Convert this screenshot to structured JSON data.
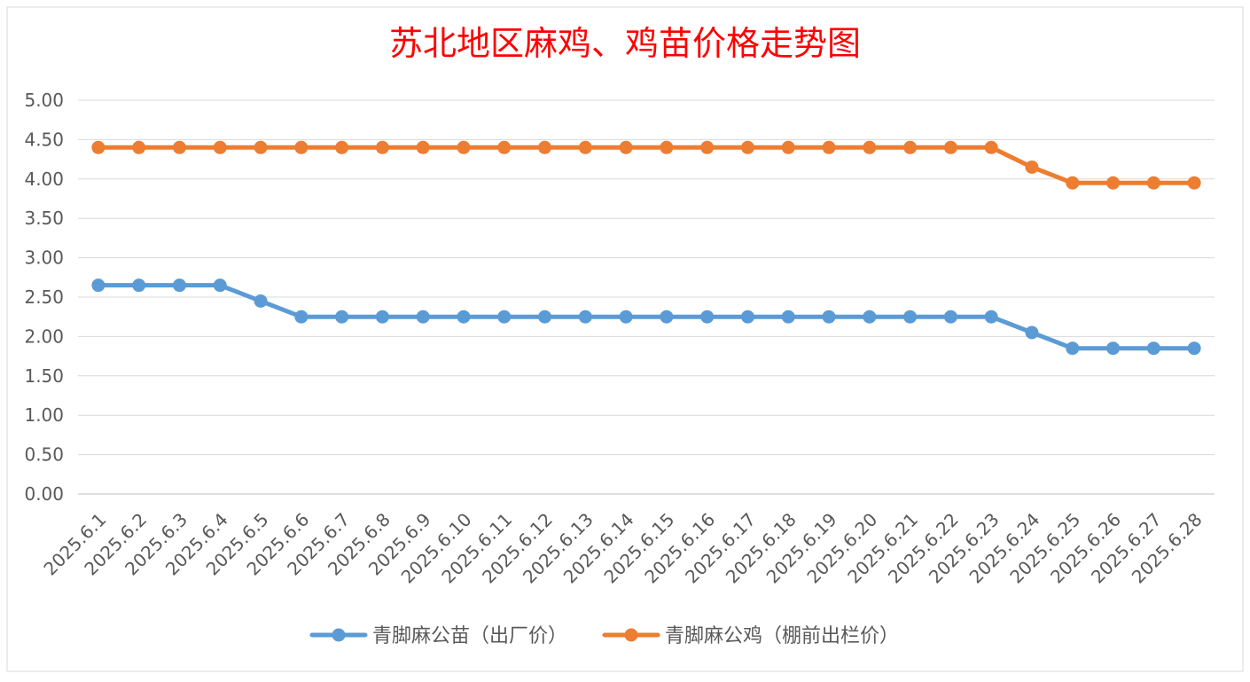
{
  "chart_data": {
    "type": "line",
    "title": "苏北地区麻鸡、鸡苗价格走势图",
    "xlabel": "",
    "ylabel": "",
    "categories": [
      "2025.6.1",
      "2025.6.2",
      "2025.6.3",
      "2025.6.4",
      "2025.6.5",
      "2025.6.6",
      "2025.6.7",
      "2025.6.8",
      "2025.6.9",
      "2025.6.10",
      "2025.6.11",
      "2025.6.12",
      "2025.6.13",
      "2025.6.14",
      "2025.6.15",
      "2025.6.16",
      "2025.6.17",
      "2025.6.18",
      "2025.6.19",
      "2025.6.20",
      "2025.6.21",
      "2025.6.22",
      "2025.6.23",
      "2025.6.24",
      "2025.6.25",
      "2025.6.26",
      "2025.6.27",
      "2025.6.28"
    ],
    "ylim": [
      0,
      5
    ],
    "yticks": [
      "0.00",
      "0.50",
      "1.00",
      "1.50",
      "2.00",
      "2.50",
      "3.00",
      "3.50",
      "4.00",
      "4.50",
      "5.00"
    ],
    "grid": true,
    "legend_position": "bottom",
    "series": [
      {
        "name": "青脚麻公苗（出厂价）",
        "color": "#5B9BD5",
        "values": [
          2.65,
          2.65,
          2.65,
          2.65,
          2.45,
          2.25,
          2.25,
          2.25,
          2.25,
          2.25,
          2.25,
          2.25,
          2.25,
          2.25,
          2.25,
          2.25,
          2.25,
          2.25,
          2.25,
          2.25,
          2.25,
          2.25,
          2.25,
          2.05,
          1.85,
          1.85,
          1.85,
          1.85
        ]
      },
      {
        "name": "青脚麻公鸡（棚前出栏价）",
        "color": "#ED7D31",
        "values": [
          4.4,
          4.4,
          4.4,
          4.4,
          4.4,
          4.4,
          4.4,
          4.4,
          4.4,
          4.4,
          4.4,
          4.4,
          4.4,
          4.4,
          4.4,
          4.4,
          4.4,
          4.4,
          4.4,
          4.4,
          4.4,
          4.4,
          4.4,
          4.15,
          3.95,
          3.95,
          3.95,
          3.95
        ]
      }
    ],
    "title_color": "#FF0000"
  }
}
